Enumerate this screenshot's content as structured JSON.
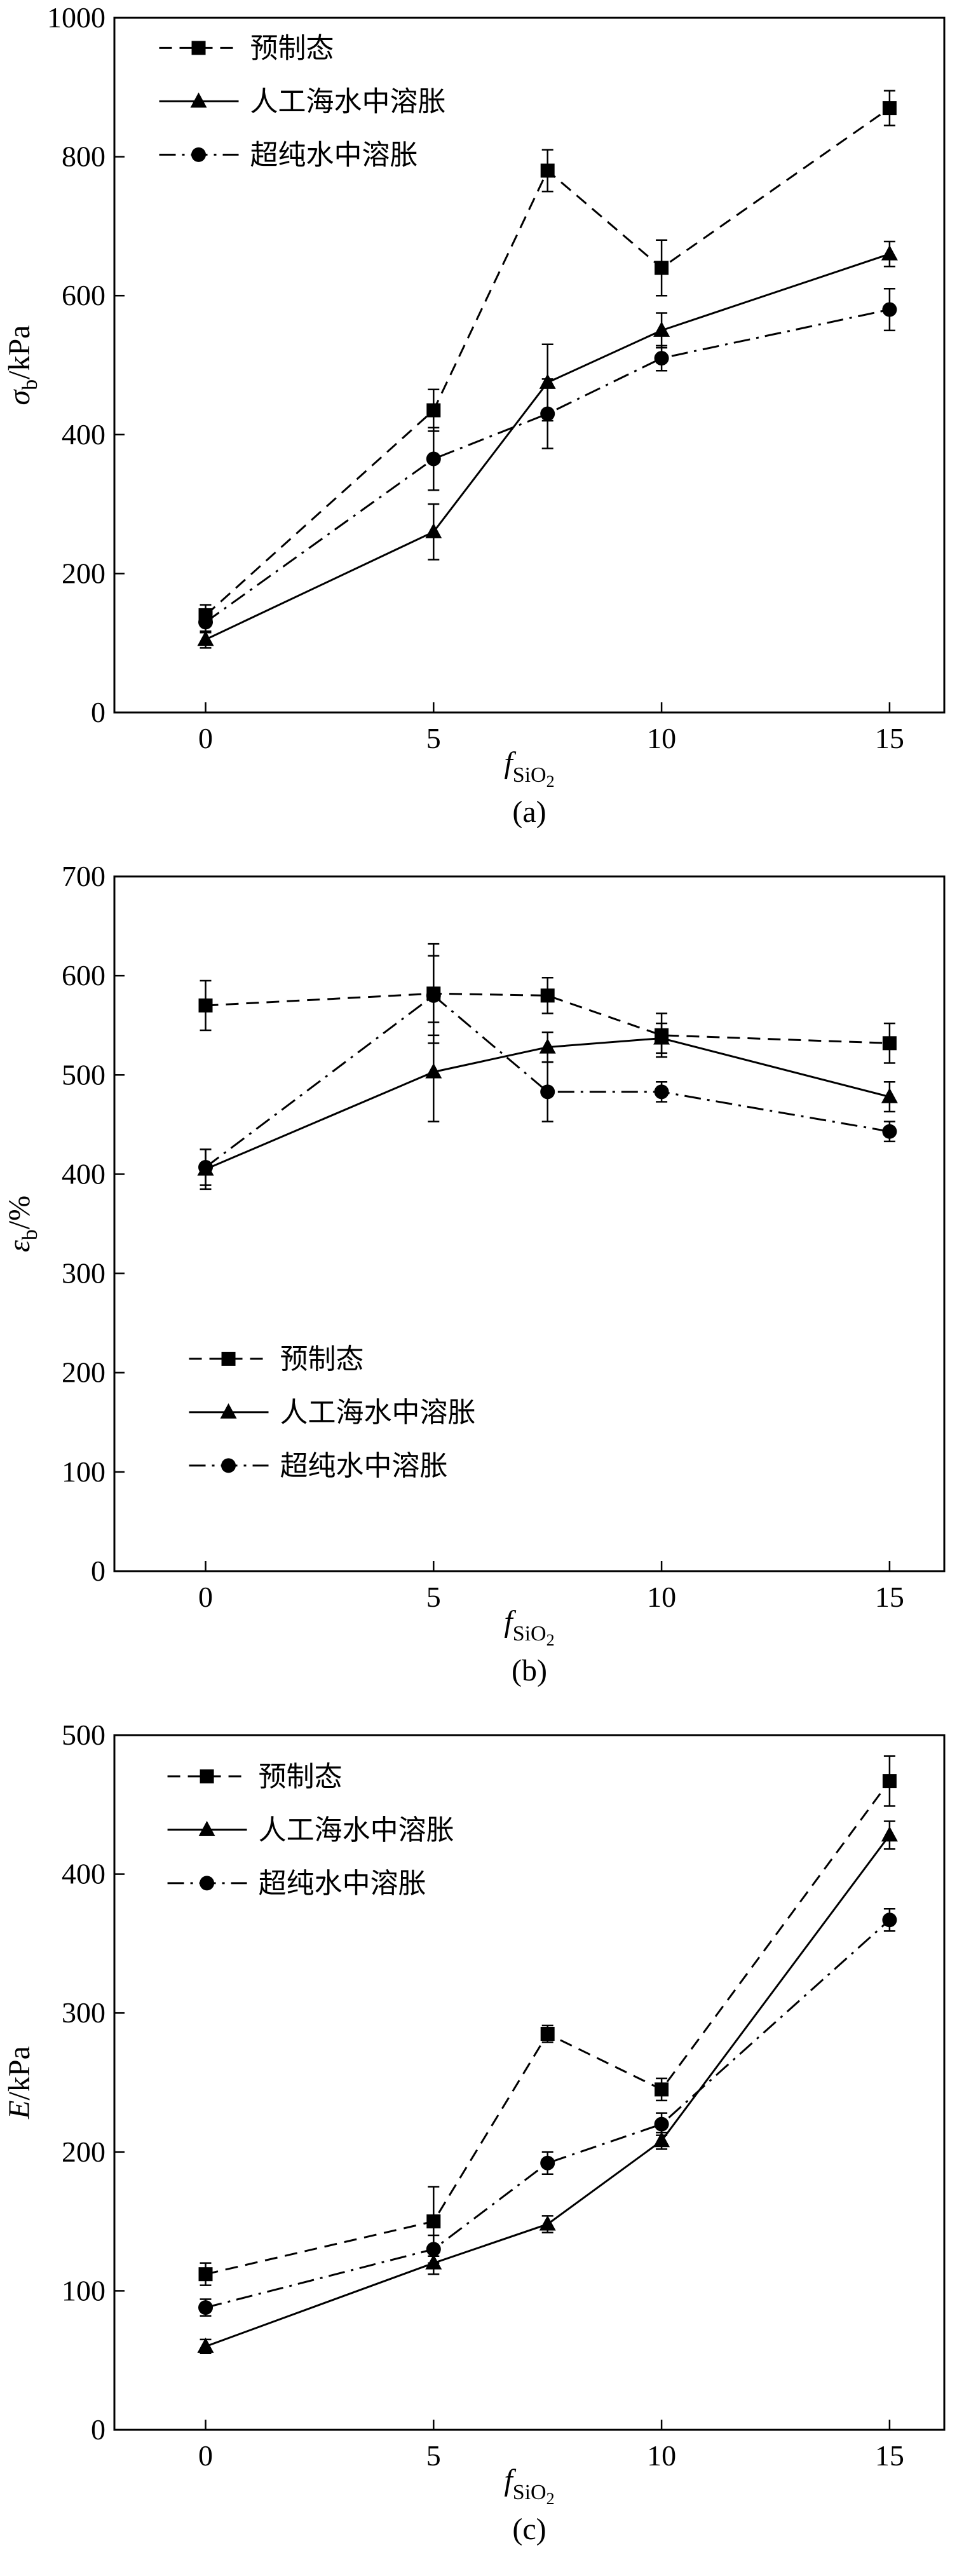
{
  "page": {
    "background": "#ffffff",
    "foreground": "#000000"
  },
  "chart_data": [
    {
      "id": "a",
      "type": "line",
      "caption": "(a)",
      "xlabel": {
        "main": "f",
        "sub": "SiO",
        "sub2": "2"
      },
      "ylabel": {
        "main": "σ",
        "main_italic": true,
        "sub": "b",
        "rest": "/kPa"
      },
      "x": [
        0,
        5,
        7.5,
        10,
        15
      ],
      "xticks": [
        0,
        5,
        10,
        15
      ],
      "xlim": [
        -2,
        16.2
      ],
      "ylim": [
        0,
        1000
      ],
      "ytick_step": 200,
      "grid": false,
      "legend": {
        "x": 0.054,
        "y": 0.004,
        "position": "top-left"
      },
      "series": [
        {
          "name": "预制态",
          "marker": "square",
          "line": "dashed",
          "color": "#000000",
          "values": [
            140,
            435,
            780,
            640,
            870
          ],
          "errors": [
            15,
            30,
            30,
            40,
            25
          ]
        },
        {
          "name": "人工海水中溶胀",
          "marker": "triangle",
          "line": "solid",
          "color": "#000000",
          "values": [
            105,
            260,
            475,
            550,
            660
          ],
          "errors": [
            12,
            40,
            55,
            25,
            18
          ]
        },
        {
          "name": "超纯水中溶胀",
          "marker": "circle",
          "line": "dashdot",
          "color": "#000000",
          "values": [
            130,
            365,
            430,
            510,
            580
          ],
          "errors": [
            15,
            45,
            50,
            18,
            30
          ]
        }
      ]
    },
    {
      "id": "b",
      "type": "line",
      "caption": "(b)",
      "xlabel": {
        "main": "f",
        "sub": "SiO",
        "sub2": "2"
      },
      "ylabel": {
        "main": "ε",
        "main_italic": true,
        "sub": "b",
        "rest": "/%"
      },
      "x": [
        0,
        5,
        7.5,
        10,
        15
      ],
      "xticks": [
        0,
        5,
        10,
        15
      ],
      "xlim": [
        -2,
        16.2
      ],
      "ylim": [
        0,
        700
      ],
      "ytick_step": 100,
      "grid": false,
      "legend": {
        "x": 0.09,
        "y": 0.655,
        "position": "left-lower"
      },
      "series": [
        {
          "name": "预制态",
          "marker": "square",
          "line": "dashed",
          "color": "#000000",
          "values": [
            570,
            582,
            580,
            540,
            532
          ],
          "errors": [
            25,
            50,
            18,
            22,
            20
          ]
        },
        {
          "name": "人工海水中溶胀",
          "marker": "triangle",
          "line": "solid",
          "color": "#000000",
          "values": [
            405,
            503,
            528,
            537,
            478
          ],
          "errors": [
            20,
            50,
            15,
            15,
            15
          ]
        },
        {
          "name": "超纯水中溶胀",
          "marker": "circle",
          "line": "dashdot",
          "color": "#000000",
          "values": [
            407,
            580,
            483,
            483,
            443
          ],
          "errors": [
            18,
            40,
            30,
            10,
            10
          ]
        }
      ]
    },
    {
      "id": "c",
      "type": "line",
      "caption": "(c)",
      "xlabel": {
        "main": "f",
        "sub": "SiO",
        "sub2": "2"
      },
      "ylabel": {
        "main": "E",
        "main_italic": true,
        "sub": "",
        "rest": "/kPa"
      },
      "x": [
        0,
        5,
        7.5,
        10,
        15
      ],
      "xticks": [
        0,
        5,
        10,
        15
      ],
      "xlim": [
        -2,
        16.2
      ],
      "ylim": [
        0,
        500
      ],
      "ytick_step": 100,
      "grid": false,
      "legend": {
        "x": 0.064,
        "y": 0.02,
        "position": "top-left"
      },
      "series": [
        {
          "name": "预制态",
          "marker": "square",
          "line": "dashed",
          "color": "#000000",
          "values": [
            112,
            150,
            285,
            245,
            467
          ],
          "errors": [
            8,
            25,
            6,
            8,
            18
          ]
        },
        {
          "name": "人工海水中溶胀",
          "marker": "triangle",
          "line": "solid",
          "color": "#000000",
          "values": [
            60,
            120,
            148,
            208,
            428
          ],
          "errors": [
            5,
            8,
            6,
            6,
            10
          ]
        },
        {
          "name": "超纯水中溶胀",
          "marker": "circle",
          "line": "dashdot",
          "color": "#000000",
          "values": [
            88,
            130,
            192,
            220,
            367
          ],
          "errors": [
            6,
            10,
            8,
            8,
            8
          ]
        }
      ]
    }
  ]
}
